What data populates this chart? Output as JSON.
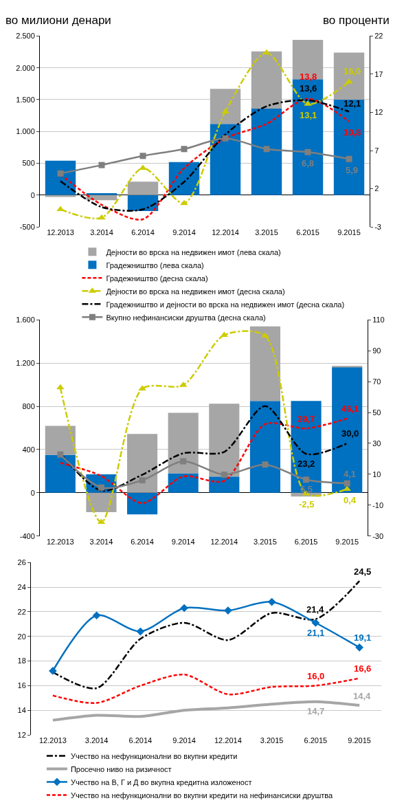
{
  "chart_data": [
    {
      "type": "bar",
      "stacked": true,
      "ylabel": "во милиони денари",
      "y2label": "во проценти",
      "categories": [
        "12.2013",
        "3.2014",
        "6.2014",
        "9.2014",
        "12.2014",
        "3.2015",
        "6.2015",
        "9.2015"
      ],
      "ylim": [
        -500,
        2500
      ],
      "yticks": [
        -500,
        0,
        500,
        {
          "value": 1000,
          "label": "1.000"
        },
        {
          "value": 1500,
          "label": "1.500"
        },
        {
          "value": 2000,
          "label": "2.000"
        },
        {
          "value": 2500,
          "label": "2.500"
        }
      ],
      "y2lim": [
        -3,
        22
      ],
      "y2ticks": [
        -3,
        2,
        7,
        12,
        17,
        22
      ],
      "grid": "y",
      "legend": "bottom",
      "series": [
        {
          "name": "Градежништво (лева скала)",
          "color": "#0070c0",
          "values": [
            540,
            30,
            -250,
            520,
            1120,
            1360,
            1820,
            1500
          ]
        },
        {
          "name": "Дејности во врска на недвижен имот (лева скала)",
          "color": "#a6a6a6",
          "values": [
            -30,
            -80,
            210,
            0,
            550,
            900,
            620,
            740
          ]
        },
        {
          "name": "Градежништво (десна скала)",
          "type": "line",
          "axis": "y2",
          "color": "#ff0000",
          "line_style": "dashed",
          "marker": "none",
          "values": [
            3.9,
            -0.1,
            -2.0,
            4.7,
            8.6,
            10.5,
            13.8,
            10.8
          ],
          "value_labels": [
            null,
            null,
            null,
            null,
            null,
            null,
            "13,8",
            "10,8"
          ]
        },
        {
          "name": "Дејности во врска на недвижен имот (десна скала)",
          "type": "line",
          "axis": "y2",
          "color": "#cccc00",
          "line_style": "dashdot",
          "marker": "triangle",
          "values": [
            -0.7,
            -1.8,
            4.7,
            0.1,
            12.1,
            19.8,
            13.1,
            16.0
          ],
          "value_labels": [
            null,
            null,
            null,
            null,
            null,
            null,
            "13,1",
            "16,0"
          ]
        },
        {
          "name": "Градежништво и дејности во врска на недвижен имот (десна скала)",
          "type": "line",
          "axis": "y2",
          "color": "#000000",
          "line_style": "dashdot",
          "marker": "none",
          "values": [
            3.0,
            -0.4,
            -0.7,
            2.9,
            9.1,
            12.8,
            13.6,
            12.1
          ],
          "value_labels": [
            null,
            null,
            null,
            null,
            null,
            null,
            "13,6",
            "12,1"
          ]
        },
        {
          "name": "Вкупно нефинансиски друштва (десна скала)",
          "type": "line",
          "axis": "y2",
          "color": "#7f7f7f",
          "line_style": "solid",
          "marker": "square",
          "values": [
            4.0,
            5.1,
            6.3,
            7.2,
            8.6,
            7.2,
            6.8,
            5.9
          ],
          "value_labels": [
            null,
            null,
            null,
            null,
            null,
            null,
            "6,8",
            "5,9"
          ]
        }
      ]
    },
    {
      "type": "bar",
      "stacked": true,
      "categories": [
        "12.2013",
        "3.2014",
        "6.2014",
        "9.2014",
        "12.2014",
        "3.2015",
        "6.2015",
        "9.2015"
      ],
      "ylim": [
        -400,
        1600
      ],
      "yticks": [
        -400,
        0,
        400,
        800,
        {
          "value": 1200,
          "label": "1.200"
        },
        {
          "value": 1600,
          "label": "1.600"
        }
      ],
      "y2lim": [
        -30,
        110
      ],
      "y2ticks": [
        -30,
        -10,
        10,
        30,
        50,
        70,
        90,
        110
      ],
      "grid": "y",
      "series": [
        {
          "color": "#0070c0",
          "values": [
            350,
            170,
            -200,
            180,
            150,
            850,
            850,
            1165
          ]
        },
        {
          "color": "#a6a6a6",
          "values": [
            270,
            -180,
            545,
            560,
            675,
            690,
            -35,
            10
          ]
        },
        {
          "type": "line",
          "axis": "y2",
          "color": "#ff0000",
          "line_style": "dashed",
          "marker": "none",
          "values": [
            17.4,
            8.9,
            -8.7,
            8.6,
            5.7,
            42.5,
            39.7,
            46.1
          ],
          "value_labels": [
            null,
            null,
            null,
            null,
            null,
            null,
            "39,7",
            "46,1"
          ]
        },
        {
          "type": "line",
          "axis": "y2",
          "color": "#cccc00",
          "line_style": "dashdot",
          "marker": "triangle",
          "values": [
            66.2,
            -21.0,
            65.4,
            67.8,
            100.2,
            99.7,
            -2.5,
            0.4
          ],
          "value_labels": [
            null,
            null,
            null,
            null,
            null,
            null,
            "-2,5",
            "0,4"
          ]
        },
        {
          "type": "line",
          "axis": "y2",
          "color": "#000000",
          "line_style": "dashdot",
          "marker": "none",
          "values": [
            23.6,
            -0.6,
            9.7,
            23.6,
            24.5,
            54.2,
            23.2,
            30.0
          ],
          "value_labels": [
            null,
            null,
            null,
            null,
            null,
            null,
            "23,2",
            "30,0"
          ]
        },
        {
          "type": "line",
          "axis": "y2",
          "color": "#7f7f7f",
          "line_style": "solid",
          "marker": "square",
          "values": [
            22.8,
            1.4,
            6.1,
            18.4,
            9.7,
            16.3,
            6.5,
            4.1
          ],
          "value_labels": [
            null,
            null,
            null,
            null,
            null,
            null,
            "6,5",
            "4,1"
          ]
        }
      ]
    },
    {
      "type": "line",
      "categories": [
        "12.2013",
        "3.2014",
        "6.2014",
        "9.2014",
        "12.2014",
        "3.2015",
        "6.2015",
        "9.2015"
      ],
      "ylim": [
        12,
        26
      ],
      "yticks": [
        12,
        14,
        16,
        18,
        20,
        22,
        24,
        26
      ],
      "grid": "y",
      "legend": "bottom",
      "series": [
        {
          "name": "Учество на нефункционални во вкупни кредити",
          "color": "#000000",
          "line_style": "dashdot",
          "marker": "none",
          "values": [
            17.1,
            15.8,
            19.8,
            21.1,
            19.7,
            21.9,
            21.4,
            24.5
          ],
          "value_labels": [
            null,
            null,
            null,
            null,
            null,
            null,
            "21,4",
            "24,5"
          ]
        },
        {
          "name": "Просечно ниво на ризичност",
          "color": "#a6a6a6",
          "line_style": "solid",
          "marker": "none",
          "values": [
            13.2,
            13.6,
            13.5,
            14.0,
            14.2,
            14.5,
            14.7,
            14.4
          ],
          "value_labels": [
            null,
            null,
            null,
            null,
            null,
            null,
            "14,7",
            "14,4"
          ]
        },
        {
          "name": "Учество на В, Г и Д во вкупна кредитна изложеност",
          "color": "#0070c0",
          "line_style": "solid",
          "marker": "diamond",
          "values": [
            17.2,
            21.7,
            20.4,
            22.3,
            22.1,
            22.8,
            21.1,
            19.1
          ],
          "value_labels": [
            null,
            null,
            null,
            null,
            null,
            null,
            "21,1",
            "19,1"
          ]
        },
        {
          "name": "Учество на нефункционални во вкупни кредити на нефинансиски друштва",
          "color": "#ff0000",
          "line_style": "dashed",
          "marker": "none",
          "values": [
            15.2,
            14.6,
            16.0,
            16.9,
            15.3,
            15.9,
            16.0,
            16.6
          ],
          "value_labels": [
            null,
            null,
            null,
            null,
            null,
            null,
            "16,0",
            "16,6"
          ]
        }
      ]
    }
  ]
}
